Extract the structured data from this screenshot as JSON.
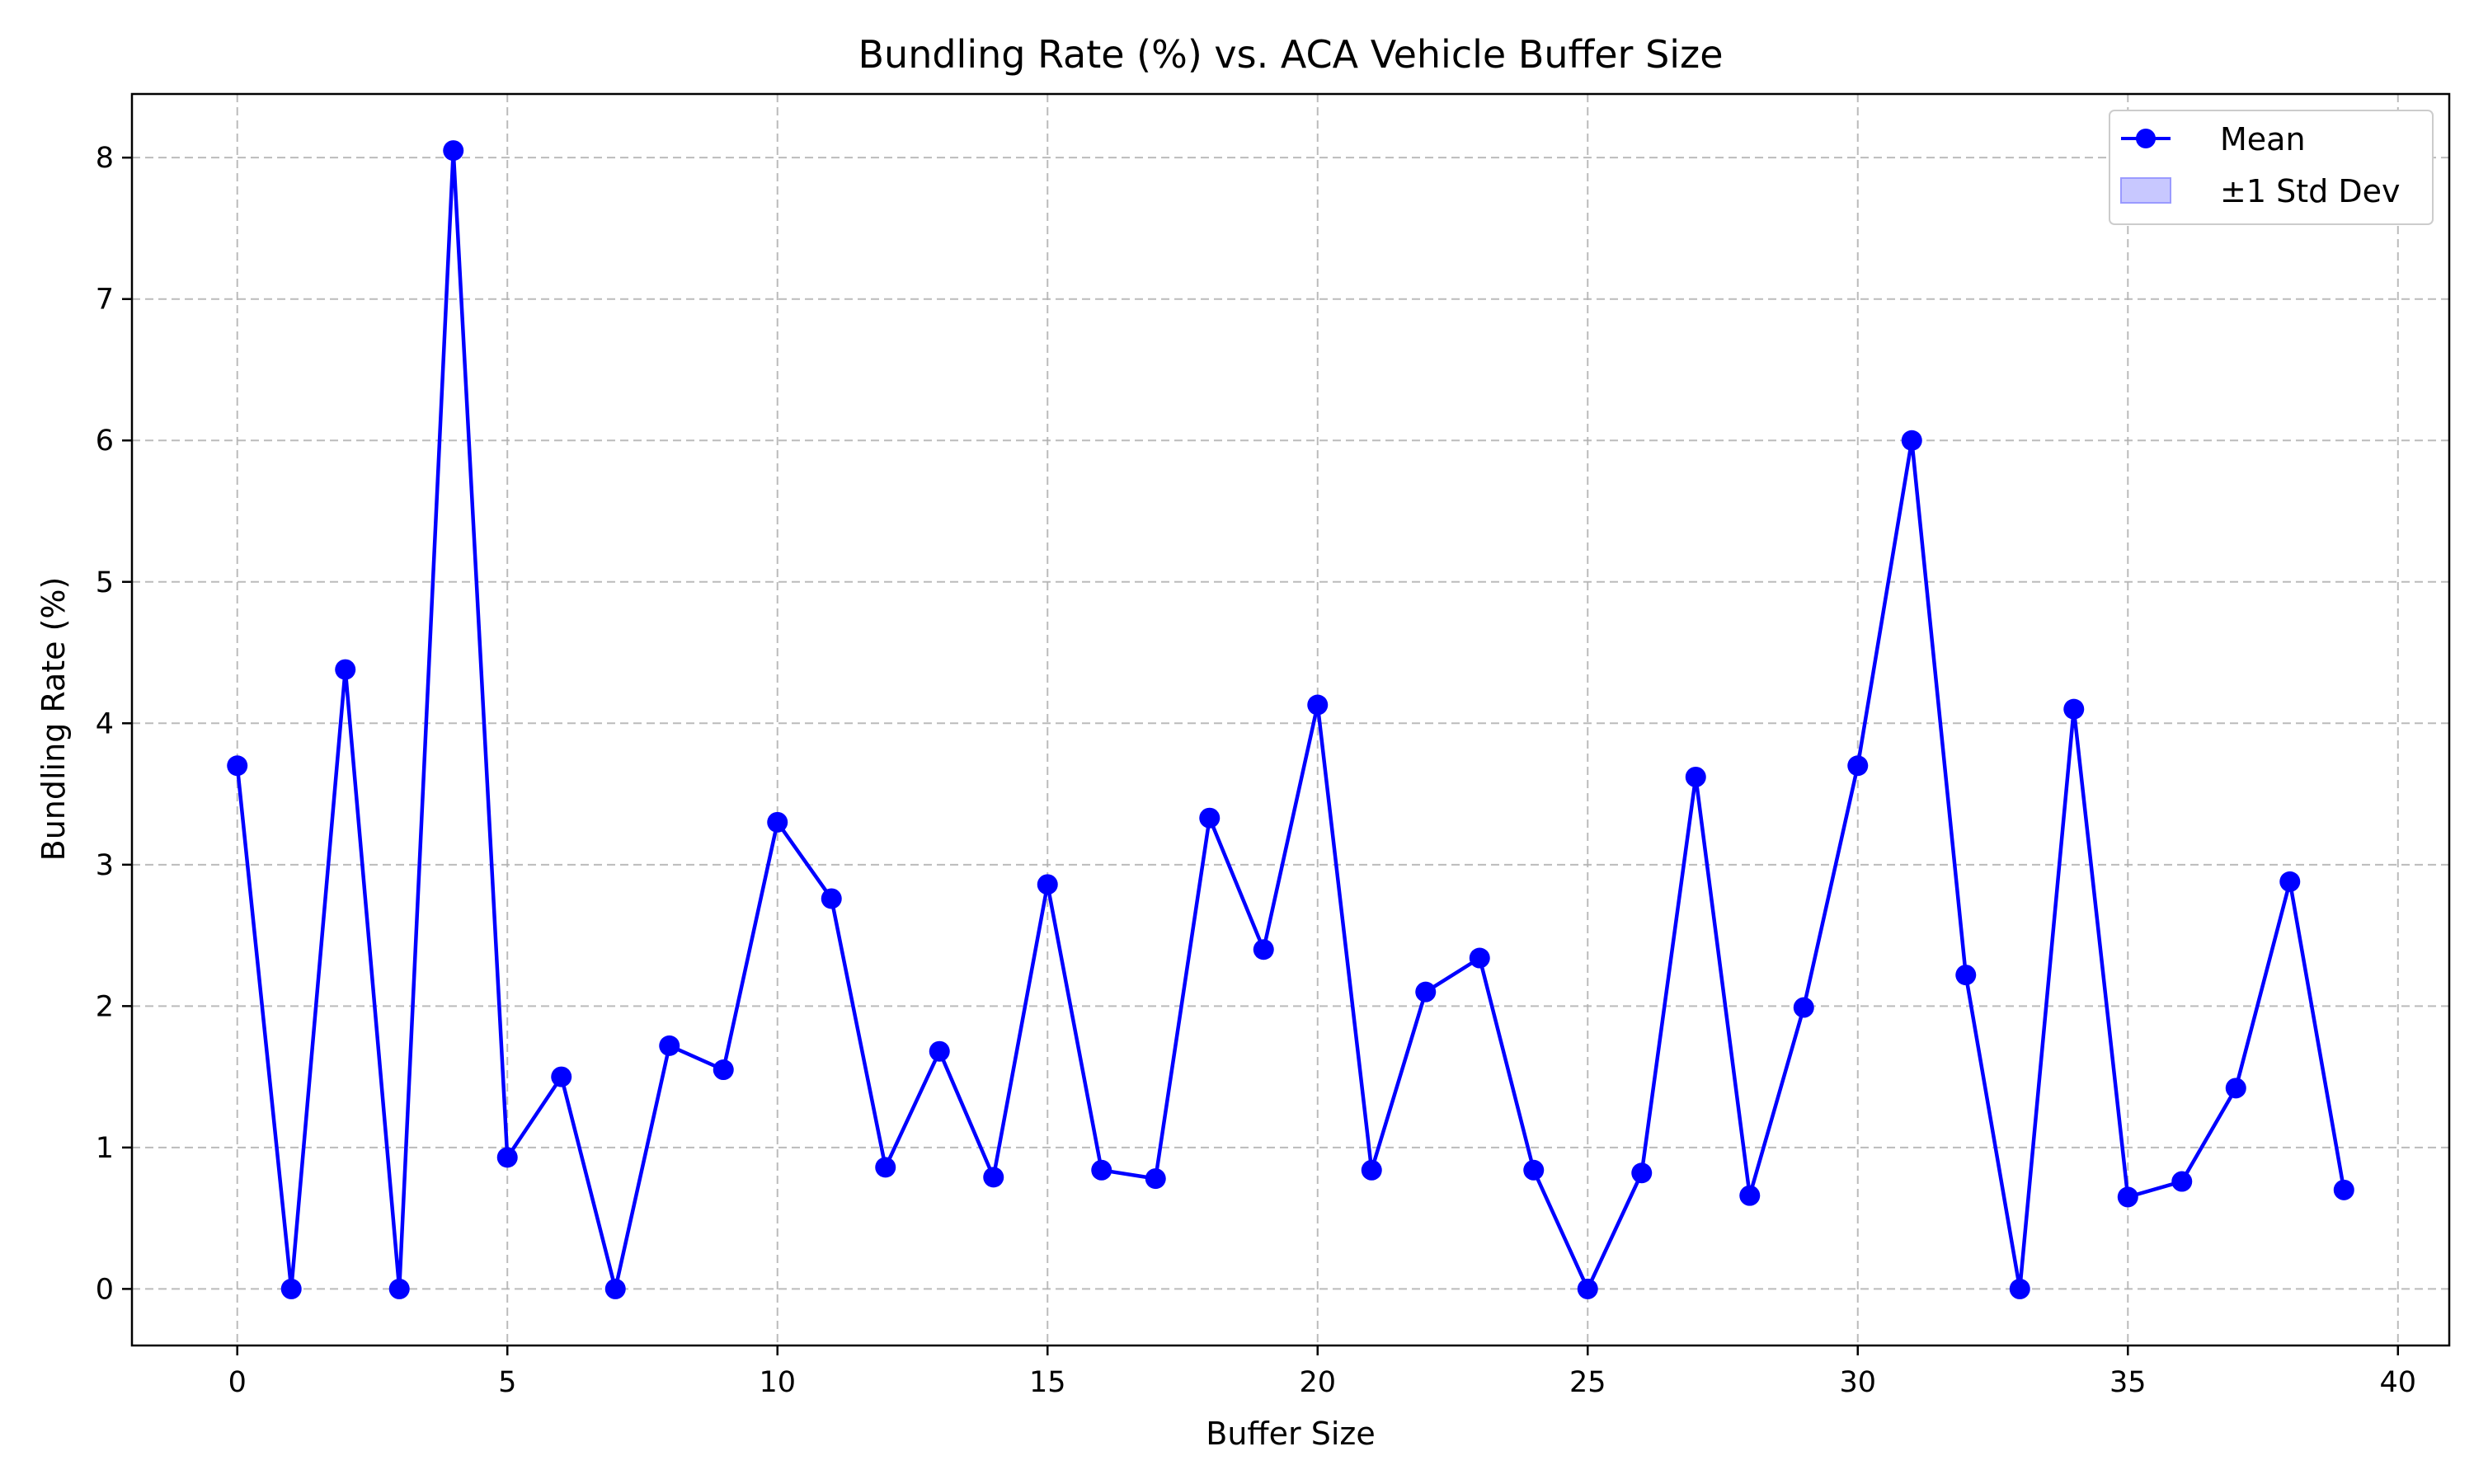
{
  "chart_data": {
    "type": "line",
    "title": "Bundling Rate (%) vs. ACA Vehicle Buffer Size",
    "xlabel": "Buffer Size",
    "ylabel": "Bundling Rate (%)",
    "xlim": [
      -1.95,
      40.95
    ],
    "ylim": [
      -0.4,
      8.45
    ],
    "xticks": [
      0,
      5,
      10,
      15,
      20,
      25,
      30,
      35,
      40
    ],
    "yticks": [
      0,
      1,
      2,
      3,
      4,
      5,
      6,
      7,
      8
    ],
    "grid": true,
    "legend_position": "top-right",
    "colors": {
      "mean": "#0000ff",
      "std_band": "#c8c8ff",
      "std_band_edge": "#9a9aff",
      "grid": "#b0b0b0"
    },
    "series": [
      {
        "name": "Mean",
        "x": [
          0,
          1,
          2,
          3,
          4,
          5,
          6,
          7,
          8,
          9,
          10,
          11,
          12,
          13,
          14,
          15,
          16,
          17,
          18,
          19,
          20,
          21,
          22,
          23,
          24,
          25,
          26,
          27,
          28,
          29,
          30,
          31,
          32,
          33,
          34,
          35,
          36,
          37,
          38,
          39
        ],
        "values": [
          3.7,
          0.0,
          4.38,
          0.0,
          8.05,
          0.93,
          1.5,
          0.0,
          1.72,
          1.55,
          3.3,
          2.76,
          0.86,
          1.68,
          0.79,
          2.86,
          0.84,
          0.78,
          3.33,
          2.4,
          4.13,
          0.84,
          2.1,
          2.34,
          0.84,
          0.0,
          0.82,
          3.62,
          0.66,
          1.99,
          3.7,
          6.0,
          2.22,
          0.0,
          4.1,
          0.65,
          0.76,
          1.42,
          2.88,
          0.7
        ]
      }
    ],
    "legend": [
      {
        "label": "Mean",
        "kind": "line-marker"
      },
      {
        "label": "±1 Std Dev",
        "kind": "band"
      }
    ]
  }
}
